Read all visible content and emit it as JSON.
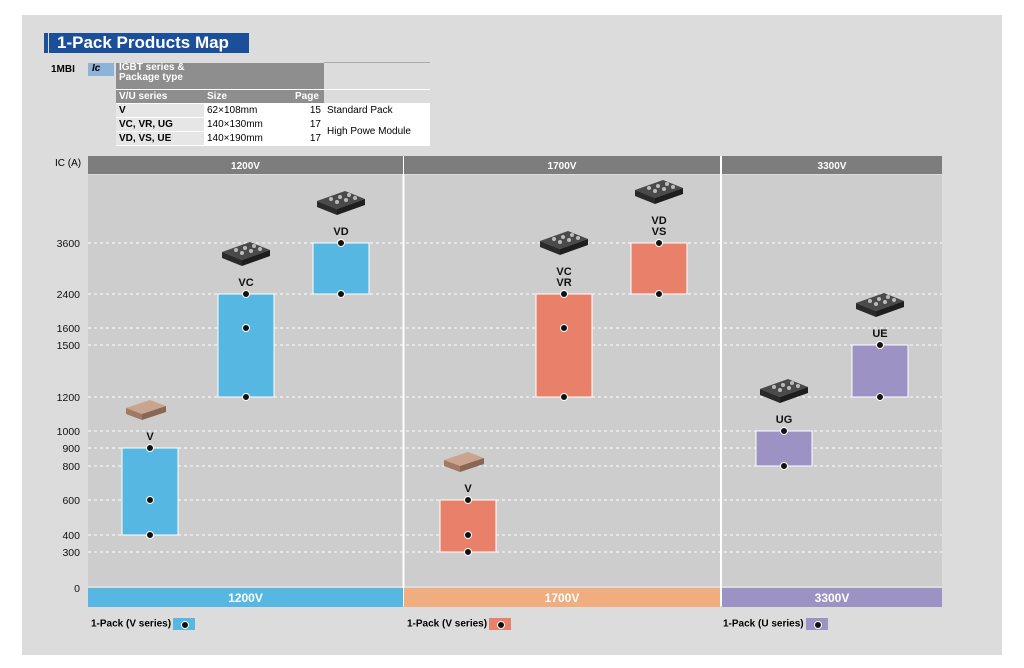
{
  "title": "1-Pack Products Map",
  "table": {
    "prefix": "1MBI",
    "ic_label": "Ic",
    "header_row1": [
      "IGBT series & Package type",
      "",
      ""
    ],
    "header_row2": [
      "V/U series",
      "Size",
      "Page"
    ],
    "rows": [
      {
        "series": "V",
        "size": "62×108mm",
        "page": "15",
        "note": "Standard Pack"
      },
      {
        "series": "VC, VR, UG",
        "size": "140×130mm",
        "page": "17",
        "note": "High Powe Module"
      },
      {
        "series": "VD, VS, UE",
        "size": "140×190mm",
        "page": "17",
        "note": ""
      }
    ]
  },
  "chart_data": {
    "type": "range-bar",
    "y_axis_label": "IC (A)",
    "y_ticks": [
      0,
      300,
      400,
      600,
      800,
      900,
      1000,
      1200,
      1500,
      1600,
      2400,
      3600
    ],
    "grid": true,
    "top_sections": [
      "1200V",
      "1700V",
      "3300V"
    ],
    "bottom_sections": [
      {
        "label": "1200V",
        "color": "#56b8e2"
      },
      {
        "label": "1700V",
        "color": "#f0ad80"
      },
      {
        "label": "3300V",
        "color": "#9c93c4"
      }
    ],
    "bars": [
      {
        "label": "V",
        "section": 0,
        "series": "V series",
        "color": "#56b8e2",
        "points": [
          400,
          600,
          900
        ],
        "min": 400,
        "max": 900
      },
      {
        "label": "VC",
        "section": 0,
        "series": "V series",
        "color": "#56b8e2",
        "points": [
          1200,
          1600,
          2400
        ],
        "min": 1200,
        "max": 2400
      },
      {
        "label": "VD",
        "section": 0,
        "series": "V series",
        "color": "#56b8e2",
        "points": [
          2400,
          3600
        ],
        "min": 2400,
        "max": 3600
      },
      {
        "label": "V",
        "section": 1,
        "series": "V series",
        "color": "#e8806a",
        "points": [
          300,
          400,
          600
        ],
        "min": 300,
        "max": 600
      },
      {
        "label": "VC\nVR",
        "section": 1,
        "series": "V series",
        "color": "#e8806a",
        "points": [
          1200,
          1600,
          2400
        ],
        "min": 1200,
        "max": 2400
      },
      {
        "label": "VD\nVS",
        "section": 1,
        "series": "V series",
        "color": "#e8806a",
        "points": [
          2400,
          3600
        ],
        "min": 2400,
        "max": 3600
      },
      {
        "label": "UG",
        "section": 2,
        "series": "U series",
        "color": "#9c93c4",
        "points": [
          800,
          1000
        ],
        "min": 800,
        "max": 1000
      },
      {
        "label": "UE",
        "section": 2,
        "series": "U series",
        "color": "#9c93c4",
        "points": [
          1200,
          1500
        ],
        "min": 1200,
        "max": 1500
      }
    ],
    "legend": [
      {
        "label": "1-Pack (V series)",
        "color": "#56b8e2"
      },
      {
        "label": "1-Pack (V series)",
        "color": "#e8806a"
      },
      {
        "label": "1-Pack (U series)",
        "color": "#9c93c4"
      }
    ]
  }
}
